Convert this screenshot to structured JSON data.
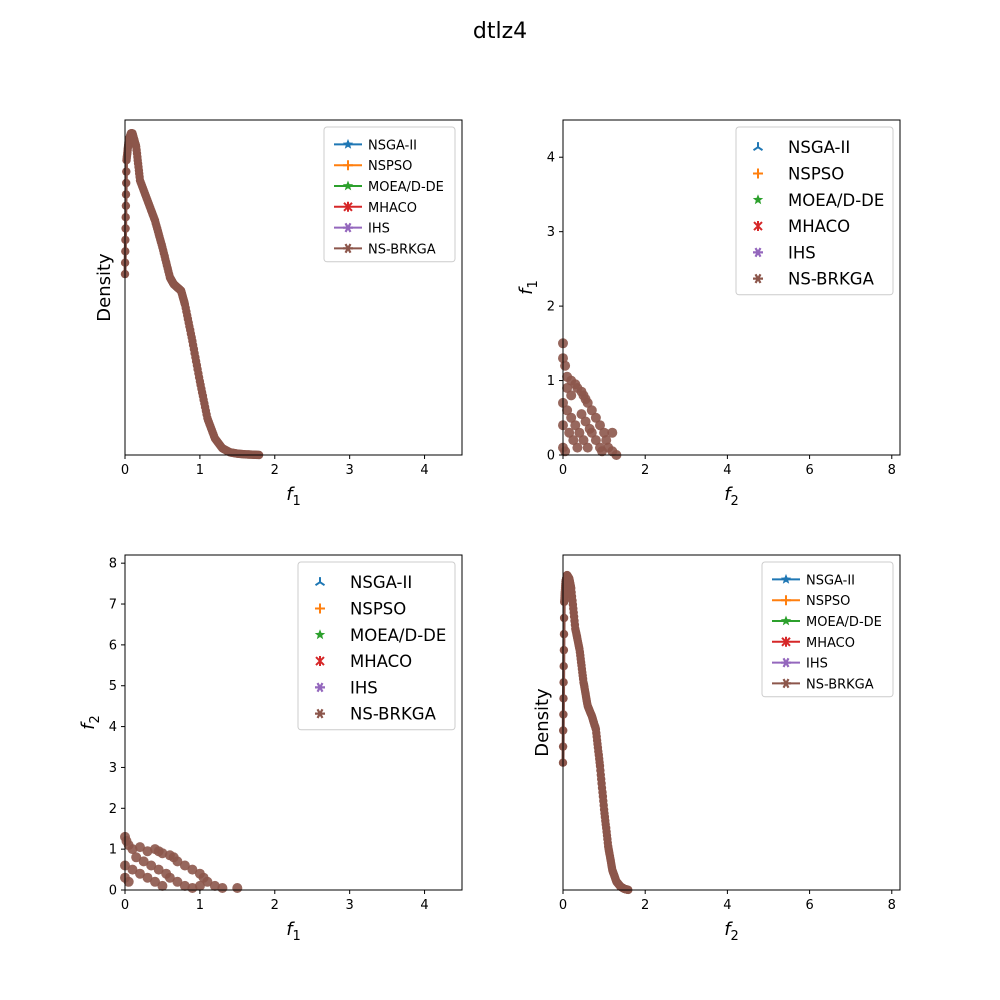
{
  "figure": {
    "title": "dtlz4"
  },
  "colors": {
    "NSGA-II": "#1f77b4",
    "NSPSO": "#ff7f0e",
    "MOEA/D-DE": "#2ca02c",
    "MHACO": "#d62728",
    "IHS": "#9467bd",
    "NS-BRKGA": "#8c564b"
  },
  "chart_data": [
    {
      "id": "density-f1",
      "type": "line",
      "xlabel": "f1",
      "ylabel": "Density",
      "xlim": [
        0,
        4.5
      ],
      "ylim": [
        0,
        1.0
      ],
      "xticks": [
        "0",
        "1",
        "2",
        "3",
        "4"
      ],
      "yticks": [],
      "legend_loc": "upper right",
      "series_names": [
        "NSGA-II",
        "NSPSO",
        "MOEA/D-DE",
        "MHACO",
        "IHS",
        "NS-BRKGA"
      ],
      "curve_x": [
        0.0,
        0.02,
        0.05,
        0.08,
        0.1,
        0.15,
        0.2,
        0.3,
        0.4,
        0.5,
        0.6,
        0.65,
        0.7,
        0.75,
        0.8,
        0.9,
        1.0,
        1.1,
        1.2,
        1.3,
        1.4,
        1.5,
        1.6,
        1.7,
        1.8
      ],
      "curve_y": [
        0.54,
        0.88,
        0.94,
        0.96,
        0.96,
        0.92,
        0.82,
        0.76,
        0.7,
        0.62,
        0.53,
        0.51,
        0.5,
        0.49,
        0.45,
        0.34,
        0.22,
        0.11,
        0.05,
        0.02,
        0.008,
        0.004,
        0.002,
        0.001,
        0.0
      ]
    },
    {
      "id": "scatter-f2-f1",
      "type": "scatter",
      "xlabel": "f2",
      "ylabel": "f1",
      "xlim": [
        0,
        8.2
      ],
      "ylim": [
        0,
        4.5
      ],
      "xticks": [
        "0",
        "2",
        "4",
        "6",
        "8"
      ],
      "yticks": [
        "0",
        "1",
        "2",
        "3",
        "4"
      ],
      "legend_loc": "upper right",
      "series_names": [
        "NSGA-II",
        "NSPSO",
        "MOEA/D-DE",
        "MHACO",
        "IHS",
        "NS-BRKGA"
      ],
      "points": [
        [
          0,
          1.5
        ],
        [
          0,
          1.3
        ],
        [
          0.05,
          1.2
        ],
        [
          0.1,
          1.05
        ],
        [
          0.2,
          1.0
        ],
        [
          0.3,
          0.95
        ],
        [
          0.35,
          0.9
        ],
        [
          0.45,
          0.85
        ],
        [
          0.5,
          0.8
        ],
        [
          0.55,
          0.75
        ],
        [
          0.6,
          0.7
        ],
        [
          0.7,
          0.6
        ],
        [
          0.8,
          0.5
        ],
        [
          0.9,
          0.4
        ],
        [
          1.0,
          0.3
        ],
        [
          1.05,
          0.2
        ],
        [
          1.1,
          0.1
        ],
        [
          1.2,
          0.05
        ],
        [
          1.3,
          0.0
        ],
        [
          0.1,
          0.6
        ],
        [
          0.2,
          0.5
        ],
        [
          0.3,
          0.4
        ],
        [
          0.4,
          0.3
        ],
        [
          0.5,
          0.2
        ],
        [
          0.6,
          0.1
        ],
        [
          0.15,
          0.3
        ],
        [
          0.25,
          0.2
        ],
        [
          0.35,
          0.1
        ],
        [
          0.05,
          0.05
        ],
        [
          0.7,
          0.3
        ],
        [
          0.8,
          0.2
        ],
        [
          0.9,
          0.1
        ],
        [
          0.45,
          0.55
        ],
        [
          0.55,
          0.45
        ],
        [
          0.65,
          0.35
        ],
        [
          0.1,
          0.9
        ],
        [
          0.2,
          0.8
        ],
        [
          0.0,
          0.7
        ],
        [
          0.0,
          0.4
        ],
        [
          0.0,
          0.1
        ],
        [
          1.2,
          0.3
        ],
        [
          0.95,
          0.05
        ]
      ]
    },
    {
      "id": "scatter-f1-f2",
      "type": "scatter",
      "xlabel": "f1",
      "ylabel": "f2",
      "xlim": [
        0,
        4.5
      ],
      "ylim": [
        0,
        8.2
      ],
      "xticks": [
        "0",
        "1",
        "2",
        "3",
        "4"
      ],
      "yticks": [
        "0",
        "1",
        "2",
        "3",
        "4",
        "5",
        "6",
        "7",
        "8"
      ],
      "legend_loc": "upper right",
      "series_names": [
        "NSGA-II",
        "NSPSO",
        "MOEA/D-DE",
        "MHACO",
        "IHS",
        "NS-BRKGA"
      ],
      "points": [
        [
          0,
          1.3
        ],
        [
          0.02,
          1.2
        ],
        [
          0.05,
          1.1
        ],
        [
          0.1,
          1.0
        ],
        [
          0.2,
          1.05
        ],
        [
          0.3,
          0.95
        ],
        [
          0.4,
          1.0
        ],
        [
          0.45,
          0.95
        ],
        [
          0.5,
          0.9
        ],
        [
          0.6,
          0.85
        ],
        [
          0.65,
          0.8
        ],
        [
          0.7,
          0.7
        ],
        [
          0.8,
          0.6
        ],
        [
          0.9,
          0.5
        ],
        [
          1.0,
          0.4
        ],
        [
          1.05,
          0.3
        ],
        [
          1.1,
          0.2
        ],
        [
          1.2,
          0.1
        ],
        [
          1.3,
          0.05
        ],
        [
          1.5,
          0.05
        ],
        [
          0.1,
          0.5
        ],
        [
          0.2,
          0.4
        ],
        [
          0.3,
          0.3
        ],
        [
          0.4,
          0.2
        ],
        [
          0.5,
          0.1
        ],
        [
          0.6,
          0.3
        ],
        [
          0.7,
          0.2
        ],
        [
          0.8,
          0.1
        ],
        [
          0.15,
          0.8
        ],
        [
          0.25,
          0.7
        ],
        [
          0.35,
          0.6
        ],
        [
          0.45,
          0.5
        ],
        [
          0.55,
          0.4
        ],
        [
          0.05,
          0.2
        ],
        [
          0.0,
          0.6
        ],
        [
          0.0,
          0.3
        ],
        [
          0.9,
          0.05
        ],
        [
          1.0,
          0.1
        ]
      ]
    },
    {
      "id": "density-f2",
      "type": "line",
      "xlabel": "f2",
      "ylabel": "Density",
      "xlim": [
        0,
        8.2
      ],
      "ylim": [
        0,
        1.0
      ],
      "xticks": [
        "0",
        "2",
        "4",
        "6",
        "8"
      ],
      "yticks": [],
      "legend_loc": "upper right",
      "series_names": [
        "NSGA-II",
        "NSPSO",
        "MOEA/D-DE",
        "MHACO",
        "IHS",
        "NS-BRKGA"
      ],
      "curve_x": [
        0.0,
        0.03,
        0.06,
        0.1,
        0.15,
        0.2,
        0.3,
        0.4,
        0.5,
        0.6,
        0.7,
        0.8,
        0.9,
        1.0,
        1.1,
        1.2,
        1.3,
        1.4,
        1.5,
        1.6
      ],
      "curve_y": [
        0.38,
        0.86,
        0.92,
        0.94,
        0.93,
        0.9,
        0.78,
        0.72,
        0.62,
        0.55,
        0.52,
        0.48,
        0.37,
        0.24,
        0.13,
        0.06,
        0.025,
        0.01,
        0.003,
        0.0
      ]
    }
  ]
}
